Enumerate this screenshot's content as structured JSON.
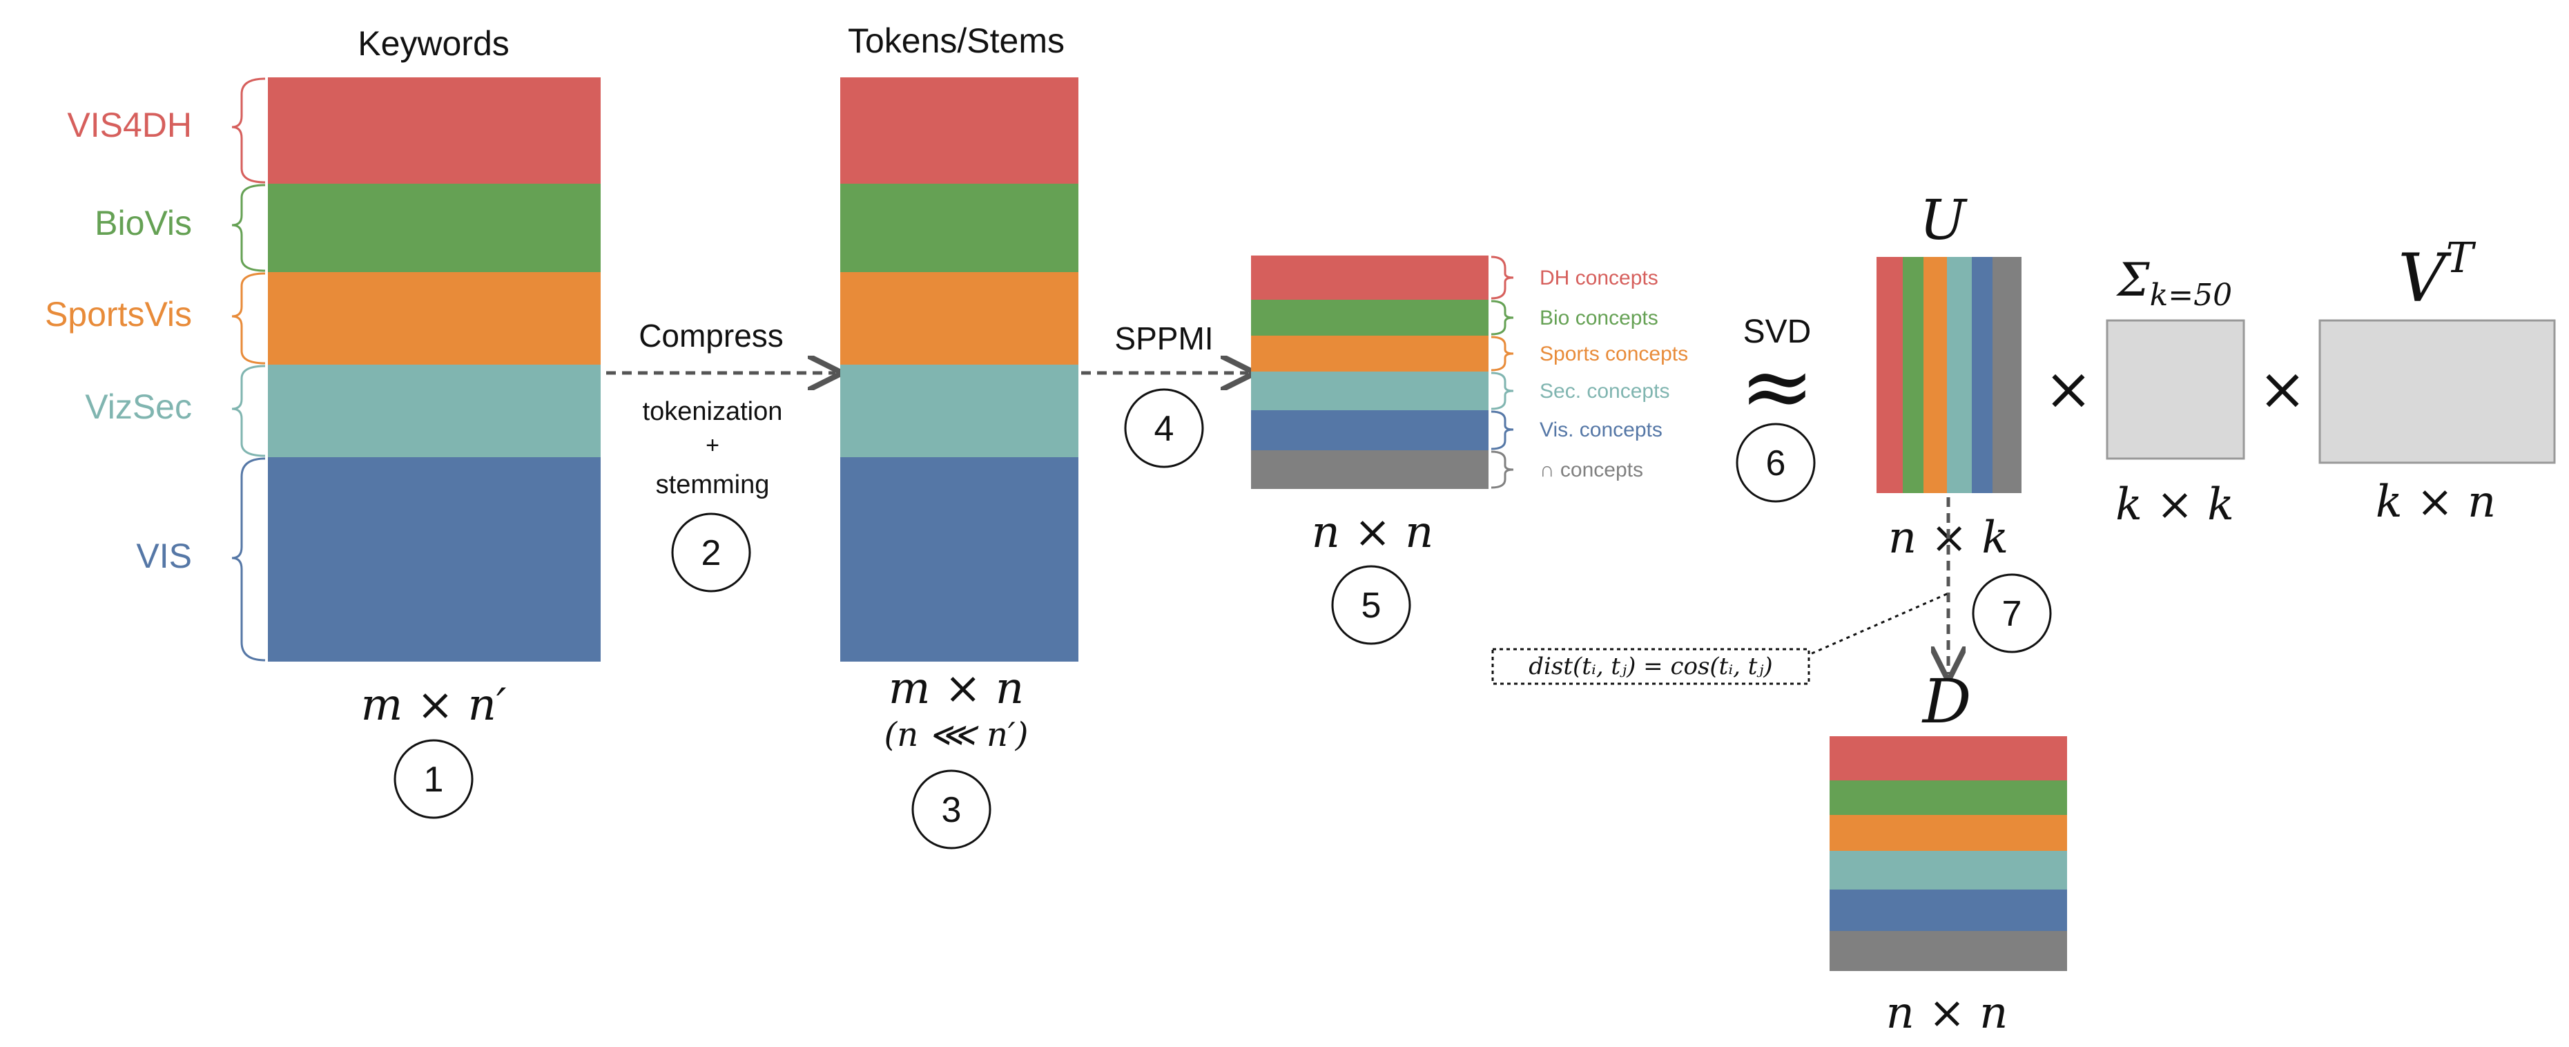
{
  "colors": {
    "vis4dh": "#d65f5c",
    "biovis": "#65a154",
    "sportsvis": "#e88b39",
    "vizsec": "#80b5b0",
    "vis": "#5577a6",
    "intersection": "#808080",
    "matrix_gray": "#d9d9d9",
    "arrow": "#555555"
  },
  "keywords_matrix": {
    "title": "Keywords",
    "dims": "m × n′",
    "step": "1",
    "categories": [
      "VIS4DH",
      "BioVis",
      "SportsVis",
      "VizSec",
      "VIS"
    ]
  },
  "compress": {
    "label": "Compress",
    "sub_line1": "tokenization",
    "sub_line2": "+",
    "sub_line3": "stemming",
    "step": "2"
  },
  "tokens_matrix": {
    "title": "Tokens/Stems",
    "dims": "m × n",
    "constraint": "(n ⋘ n′)",
    "step": "3"
  },
  "sppmi": {
    "label": "SPPMI",
    "step": "4"
  },
  "concepts_matrix": {
    "dims": "n × n",
    "step": "5",
    "concepts": [
      "DH concepts",
      "Bio concepts",
      "Sports concepts",
      "Sec. concepts",
      "Vis. concepts",
      "∩ concepts"
    ]
  },
  "svd": {
    "label": "SVD",
    "approx": "≈",
    "step": "6"
  },
  "u_matrix": {
    "title": "U",
    "dims": "n × k"
  },
  "sigma_matrix": {
    "title_main": "Σ",
    "title_sub": "k=50",
    "dims": "k × k"
  },
  "vt_matrix": {
    "title_main": "V",
    "title_sup": "T",
    "dims": "k × n"
  },
  "times_symbol": "×",
  "distance": {
    "formula": "dist(tᵢ, tⱼ) = cos(tᵢ, tⱼ)",
    "step": "7"
  },
  "d_matrix": {
    "title": "D",
    "dims": "n × n"
  }
}
